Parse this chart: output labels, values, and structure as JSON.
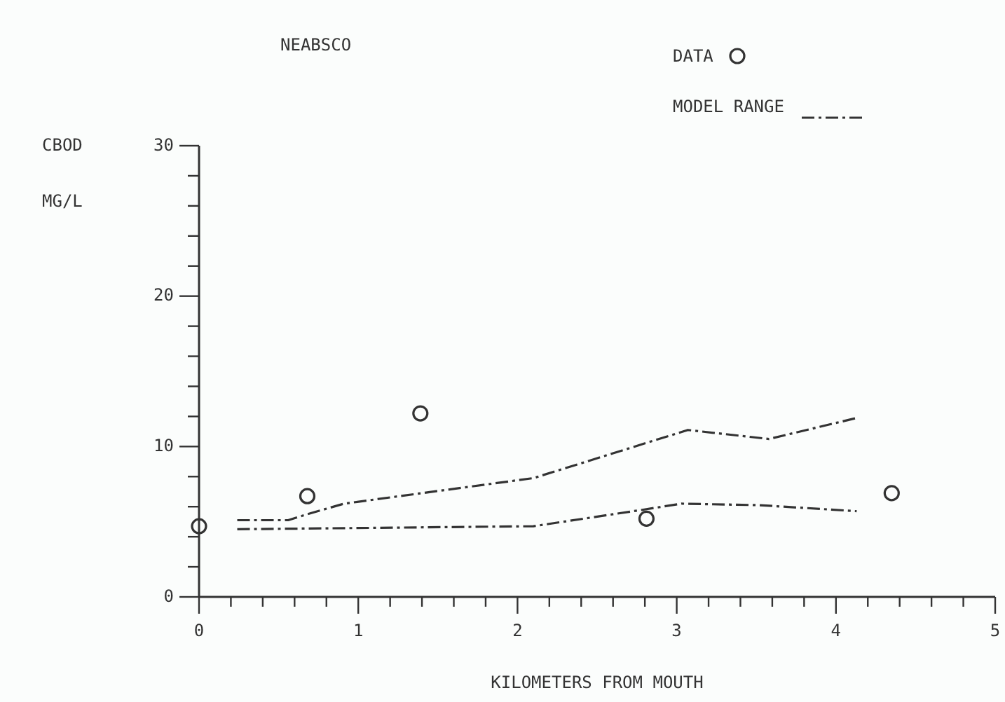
{
  "chart_data": {
    "type": "scatter",
    "title": "NEABSCO",
    "xlabel": "KILOMETERS FROM MOUTH",
    "ylabel": "CBOD MG/L",
    "xlim": [
      0,
      5
    ],
    "ylim": [
      0,
      30
    ],
    "xticks": [
      0,
      {
        "value": 0.2,
        "label": null
      },
      {
        "value": 0.4,
        "label": null
      },
      {
        "value": 0.6,
        "label": null
      },
      {
        "value": 0.8,
        "label": null
      },
      1,
      {
        "value": 1.2,
        "label": null
      },
      {
        "value": 1.4,
        "label": null
      },
      {
        "value": 1.6,
        "label": null
      },
      {
        "value": 1.8,
        "label": null
      },
      2,
      {
        "value": 2.2,
        "label": null
      },
      {
        "value": 2.4,
        "label": null
      },
      {
        "value": 2.6,
        "label": null
      },
      {
        "value": 2.8,
        "label": null
      },
      3,
      {
        "value": 3.2,
        "label": null
      },
      {
        "value": 3.4,
        "label": null
      },
      {
        "value": 3.6,
        "label": null
      },
      {
        "value": 3.8,
        "label": null
      },
      4,
      {
        "value": 4.2,
        "label": null
      },
      {
        "value": 4.4,
        "label": null
      },
      {
        "value": 4.6,
        "label": null
      },
      {
        "value": 4.8,
        "label": null
      },
      5
    ],
    "yticks": [
      0,
      {
        "value": 2,
        "label": null
      },
      {
        "value": 4,
        "label": null
      },
      {
        "value": 6,
        "label": null
      },
      {
        "value": 8,
        "label": null
      },
      10,
      {
        "value": 12,
        "label": null
      },
      {
        "value": 14,
        "label": null
      },
      {
        "value": 16,
        "label": null
      },
      {
        "value": 18,
        "label": null
      },
      20,
      {
        "value": 22,
        "label": null
      },
      {
        "value": 24,
        "label": null
      },
      {
        "value": 26,
        "label": null
      },
      {
        "value": 28,
        "label": null
      },
      30
    ],
    "legend": "top right",
    "grid": false,
    "series": [
      {
        "name": "DATA",
        "marker": "circle",
        "color": "#333333",
        "x": [
          0,
          0.68,
          1.39,
          2.81,
          4.35
        ],
        "values": [
          4.7,
          6.7,
          12.2,
          5.2,
          6.9
        ]
      },
      {
        "name": "MODEL RANGE",
        "type": "line",
        "line_style": "dashed",
        "color": "#333333",
        "x": [
          0.24,
          0.56,
          0.68,
          0.91,
          2.1,
          3.07,
          3.58,
          4.13
        ],
        "values": [
          5.1,
          5.1,
          5.5,
          6.2,
          7.9,
          11.1,
          10.5,
          11.9
        ]
      },
      {
        "type": "line",
        "line_style": "dashed",
        "color": "#333333",
        "x": [
          0.24,
          2.1,
          2.79,
          3.03,
          3.52,
          4.13
        ],
        "values": [
          4.5,
          4.7,
          5.8,
          6.2,
          6.1,
          5.7
        ]
      }
    ]
  }
}
